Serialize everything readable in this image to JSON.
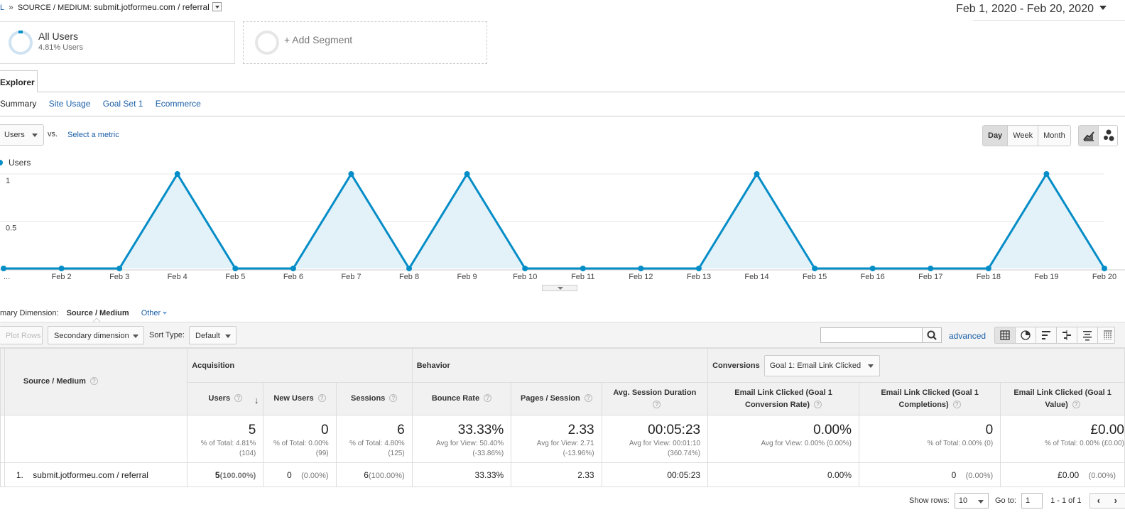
{
  "breadcrumb": {
    "home": "L",
    "separator": "»",
    "dimension_label": "Source / Medium:",
    "value": "submit.jotformeu.com / referral"
  },
  "date_range": "Feb 1, 2020 - Feb 20, 2020",
  "segments": {
    "all_users": {
      "title": "All Users",
      "subtitle": "4.81% Users"
    },
    "add_label": "+ Add Segment"
  },
  "tabs": {
    "explorer": "Explorer"
  },
  "subtabs": [
    "Summary",
    "Site Usage",
    "Goal Set 1",
    "Ecommerce"
  ],
  "metric": {
    "selected": "Users",
    "vs": "vs.",
    "select_metric": "Select a metric"
  },
  "periods": [
    "Day",
    "Week",
    "Month"
  ],
  "chart_data": {
    "type": "area",
    "legend": "Users",
    "x": [
      "...",
      "Feb 2",
      "Feb 3",
      "Feb 4",
      "Feb 5",
      "Feb 6",
      "Feb 7",
      "Feb 8",
      "Feb 9",
      "Feb 10",
      "Feb 11",
      "Feb 12",
      "Feb 13",
      "Feb 14",
      "Feb 15",
      "Feb 16",
      "Feb 17",
      "Feb 18",
      "Feb 19",
      "Feb 20"
    ],
    "series": [
      {
        "name": "Users",
        "values": [
          0,
          0,
          0,
          1,
          0,
          0,
          1,
          0,
          1,
          0,
          0,
          0,
          0,
          1,
          0,
          0,
          0,
          0,
          1,
          0
        ]
      }
    ],
    "y_ticks": [
      "0.5",
      "1"
    ],
    "ylim": [
      0,
      1
    ],
    "color": "#058dc7",
    "fill": "#e3f1f9"
  },
  "dimension_bar": {
    "label": "mary Dimension:",
    "active": "Source / Medium",
    "other": "Other"
  },
  "toolbar": {
    "plot_rows": "Plot Rows",
    "secondary_dimension": "Secondary dimension",
    "sort_type_label": "Sort Type:",
    "sort_type_value": "Default",
    "search_placeholder": "",
    "advanced": "advanced"
  },
  "table": {
    "groups": {
      "acquisition": "Acquisition",
      "behavior": "Behavior",
      "conversions": "Conversions",
      "goal_select": "Goal 1: Email Link Clicked"
    },
    "columns": {
      "source_medium": "Source / Medium",
      "users": "Users",
      "new_users": "New Users",
      "sessions": "Sessions",
      "bounce_rate": "Bounce Rate",
      "pages_session": "Pages / Session",
      "avg_session_duration": "Avg. Session Duration",
      "conv_rate": "Email Link Clicked (Goal 1 Conversion Rate)",
      "completions": "Email Link Clicked (Goal 1 Completions)",
      "value": "Email Link Clicked (Goal 1 Value)"
    },
    "totals": {
      "users": {
        "value": "5",
        "sub1": "% of Total: 4.81%",
        "sub2": "(104)"
      },
      "new_users": {
        "value": "0",
        "sub1": "% of Total: 0.00%",
        "sub2": "(99)"
      },
      "sessions": {
        "value": "6",
        "sub1": "% of Total: 4.80%",
        "sub2": "(125)"
      },
      "bounce_rate": {
        "value": "33.33%",
        "sub1": "Avg for View: 50.40%",
        "sub2": "(-33.86%)"
      },
      "pages_session": {
        "value": "2.33",
        "sub1": "Avg for View: 2.71",
        "sub2": "(-13.96%)"
      },
      "avg_session_duration": {
        "value": "00:05:23",
        "sub1": "Avg for View: 00:01:10",
        "sub2": "(360.74%)"
      },
      "conv_rate": {
        "value": "0.00%",
        "sub1": "Avg for View: 0.00% (0.00%)"
      },
      "completions": {
        "value": "0",
        "sub1": "% of Total: 0.00% (0)"
      },
      "value": {
        "value": "£0.00",
        "sub1": "% of Total: 0.00% (£0.00)"
      }
    },
    "rows": [
      {
        "index": "1.",
        "source_medium": "submit.jotformeu.com / referral",
        "users": "5",
        "users_pct": "(100.00%)",
        "new_users": "0",
        "new_users_pct": "(0.00%)",
        "sessions": "6",
        "sessions_pct": "(100.00%)",
        "bounce_rate": "33.33%",
        "pages_session": "2.33",
        "avg_session_duration": "00:05:23",
        "conv_rate": "0.00%",
        "completions": "0",
        "completions_pct": "(0.00%)",
        "value": "£0.00",
        "value_pct": "(0.00%)"
      }
    ]
  },
  "footer": {
    "show_rows_label": "Show rows:",
    "show_rows_value": "10",
    "goto_label": "Go to:",
    "goto_value": "1",
    "range": "1 - 1 of 1"
  }
}
